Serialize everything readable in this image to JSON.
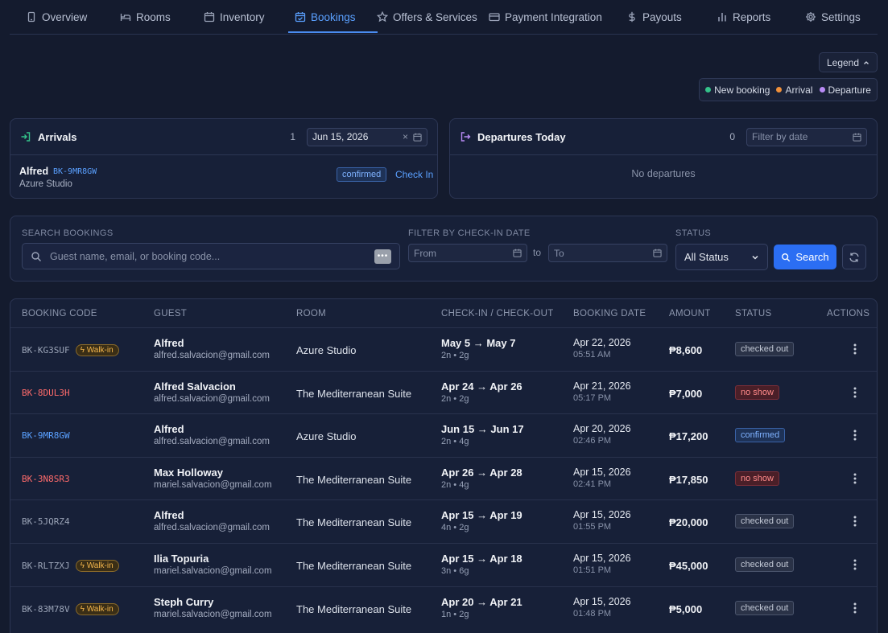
{
  "nav": {
    "tabs": [
      {
        "label": "Overview",
        "icon": "phone-icon"
      },
      {
        "label": "Rooms",
        "icon": "bed-icon"
      },
      {
        "label": "Inventory",
        "icon": "calendar-icon"
      },
      {
        "label": "Bookings",
        "icon": "calendar-check-icon",
        "active": true
      },
      {
        "label": "Offers & Services",
        "icon": "star-icon"
      },
      {
        "label": "Payment Integration",
        "icon": "credit-card-icon"
      },
      {
        "label": "Payouts",
        "icon": "dollar-icon"
      },
      {
        "label": "Reports",
        "icon": "bar-chart-icon"
      },
      {
        "label": "Settings",
        "icon": "gear-icon"
      }
    ]
  },
  "legend": {
    "button_label": "Legend",
    "items": [
      {
        "label": "New booking",
        "color": "#34c28a"
      },
      {
        "label": "Arrival",
        "color": "#f0903a"
      },
      {
        "label": "Departure",
        "color": "#b88af5"
      }
    ]
  },
  "arrivals": {
    "title": "Arrivals",
    "count": "1",
    "date_value": "Jun 15, 2026",
    "item": {
      "name": "Alfred",
      "code": "BK-9MR8GW",
      "room": "Azure Studio",
      "status": "confirmed",
      "action": "Check In"
    }
  },
  "departures": {
    "title": "Departures Today",
    "count": "0",
    "date_placeholder": "Filter by date",
    "empty": "No departures"
  },
  "search": {
    "label": "Search Bookings",
    "placeholder": "Guest name, email, or booking code...",
    "date_label": "Filter by check-in date",
    "from_placeholder": "From",
    "to_text": "to",
    "to_placeholder": "To",
    "status_label": "Status",
    "status_value": "All Status",
    "button": "Search"
  },
  "table": {
    "headers": {
      "code": "Booking Code",
      "guest": "Guest",
      "room": "Room",
      "dates": "Check-in / Check-out",
      "booked": "Booking Date",
      "amount": "Amount",
      "status": "Status",
      "actions": "Actions"
    },
    "walkin_label": "Walk-in",
    "rows": [
      {
        "code": "BK-KG3SUF",
        "code_color": "#9aa3b6",
        "walkin": true,
        "guest": "Alfred",
        "email": "alfred.salvacion@gmail.com",
        "room": "Azure Studio",
        "dates": "May 5 → May 7",
        "stay": "2n • 2g",
        "booked": "Apr 22, 2026",
        "time": "05:51 AM",
        "amount": "₱8,600",
        "status": "checked out",
        "status_type": "checked"
      },
      {
        "code": "BK-8DUL3H",
        "code_color": "#ff6b6b",
        "walkin": false,
        "guest": "Alfred Salvacion",
        "email": "alfred.salvacion@gmail.com",
        "room": "The Mediterranean Suite",
        "dates": "Apr 24 → Apr 26",
        "stay": "2n • 2g",
        "booked": "Apr 21, 2026",
        "time": "05:17 PM",
        "amount": "₱7,000",
        "status": "no show",
        "status_type": "noshow"
      },
      {
        "code": "BK-9MR8GW",
        "code_color": "#5aa0ff",
        "walkin": false,
        "guest": "Alfred",
        "email": "alfred.salvacion@gmail.com",
        "room": "Azure Studio",
        "dates": "Jun 15 → Jun 17",
        "stay": "2n • 4g",
        "booked": "Apr 20, 2026",
        "time": "02:46 PM",
        "amount": "₱17,200",
        "status": "confirmed",
        "status_type": "confirmed"
      },
      {
        "code": "BK-3N8SR3",
        "code_color": "#ff6b6b",
        "walkin": false,
        "guest": "Max Holloway",
        "email": "mariel.salvacion@gmail.com",
        "room": "The Mediterranean Suite",
        "dates": "Apr 26 → Apr 28",
        "stay": "2n • 4g",
        "booked": "Apr 15, 2026",
        "time": "02:41 PM",
        "amount": "₱17,850",
        "status": "no show",
        "status_type": "noshow"
      },
      {
        "code": "BK-5JQRZ4",
        "code_color": "#9aa3b6",
        "walkin": false,
        "guest": "Alfred",
        "email": "alfred.salvacion@gmail.com",
        "room": "The Mediterranean Suite",
        "dates": "Apr 15 → Apr 19",
        "stay": "4n • 2g",
        "booked": "Apr 15, 2026",
        "time": "01:55 PM",
        "amount": "₱20,000",
        "status": "checked out",
        "status_type": "checked"
      },
      {
        "code": "BK-RLTZXJ",
        "code_color": "#9aa3b6",
        "walkin": true,
        "guest": "Ilia Topuria",
        "email": "mariel.salvacion@gmail.com",
        "room": "The Mediterranean Suite",
        "dates": "Apr 15 → Apr 18",
        "stay": "3n • 6g",
        "booked": "Apr 15, 2026",
        "time": "01:51 PM",
        "amount": "₱45,000",
        "status": "checked out",
        "status_type": "checked"
      },
      {
        "code": "BK-83M78V",
        "code_color": "#9aa3b6",
        "walkin": true,
        "guest": "Steph Curry",
        "email": "mariel.salvacion@gmail.com",
        "room": "The Mediterranean Suite",
        "dates": "Apr 20 → Apr 21",
        "stay": "1n • 2g",
        "booked": "Apr 15, 2026",
        "time": "01:48 PM",
        "amount": "₱5,000",
        "status": "checked out",
        "status_type": "checked"
      }
    ]
  }
}
